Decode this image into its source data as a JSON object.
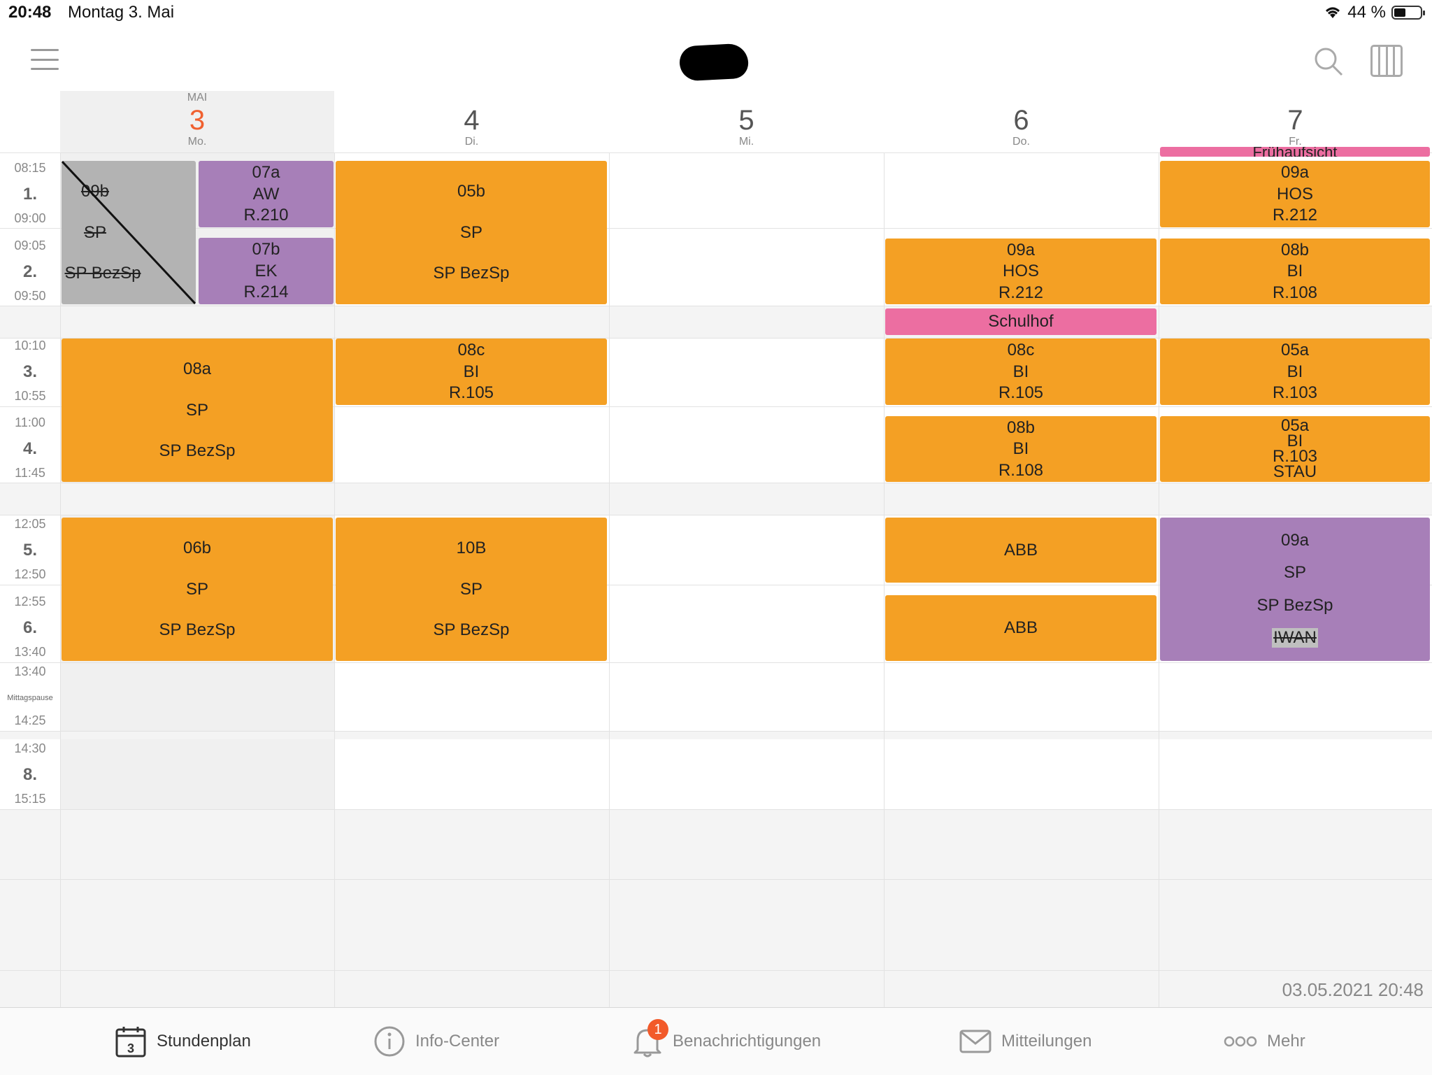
{
  "status": {
    "time": "20:48",
    "date": "Montag 3. Mai",
    "battery": "44 %"
  },
  "header": {
    "menu_icon": "hamburger-icon",
    "search_icon": "search-icon",
    "view_icon": "columns-icon"
  },
  "days": [
    {
      "month": "MAI",
      "num": "3",
      "weekday": "Mo.",
      "today": true
    },
    {
      "month": "",
      "num": "4",
      "weekday": "Di."
    },
    {
      "month": "",
      "num": "5",
      "weekday": "Mi."
    },
    {
      "month": "",
      "num": "6",
      "weekday": "Do."
    },
    {
      "month": "",
      "num": "7",
      "weekday": "Fr."
    }
  ],
  "periods": [
    {
      "start": "08:15",
      "num": "1.",
      "end": "09:00"
    },
    {
      "start": "09:05",
      "num": "2.",
      "end": "09:50"
    },
    {
      "start": "10:10",
      "num": "3.",
      "end": "10:55"
    },
    {
      "start": "11:00",
      "num": "4.",
      "end": "11:45"
    },
    {
      "start": "12:05",
      "num": "5.",
      "end": "12:50"
    },
    {
      "start": "12:55",
      "num": "6.",
      "end": "13:40"
    },
    {
      "start": "13:40",
      "num": "Mittagspause",
      "end": "14:25"
    },
    {
      "start": "14:30",
      "num": "8.",
      "end": "15:15"
    }
  ],
  "lessons": {
    "mo_1_2_cancel": [
      "09b",
      "SP",
      "SP BezSp"
    ],
    "mo_1": [
      "07a",
      "AW",
      "R.210"
    ],
    "mo_2": [
      "07b",
      "EK",
      "R.214"
    ],
    "mo_3_4": [
      "08a",
      "SP",
      "SP BezSp"
    ],
    "mo_5_6": [
      "06b",
      "SP",
      "SP BezSp"
    ],
    "di_1_2": [
      "05b",
      "SP",
      "SP BezSp"
    ],
    "di_3": [
      "08c",
      "BI",
      "R.105"
    ],
    "di_5_6": [
      "10B",
      "SP",
      "SP BezSp"
    ],
    "do_2": [
      "09a",
      "HOS",
      "R.212"
    ],
    "do_break": "Schulhof",
    "do_3": [
      "08c",
      "BI",
      "R.105"
    ],
    "do_4": [
      "08b",
      "BI",
      "R.108"
    ],
    "do_5": "ABB",
    "do_6": "ABB",
    "fr_top": "Frühaufsicht",
    "fr_1": [
      "09a",
      "HOS",
      "R.212"
    ],
    "fr_2": [
      "08b",
      "BI",
      "R.108"
    ],
    "fr_3": [
      "05a",
      "BI",
      "R.103"
    ],
    "fr_4": [
      "05a",
      "BI",
      "R.103",
      "STAU"
    ],
    "fr_5_6": [
      "09a",
      "SP",
      "SP BezSp",
      "IWAN"
    ]
  },
  "footer_timestamp": "03.05.2021 20:48",
  "tabs": [
    {
      "label": "Stundenplan",
      "icon": "calendar-icon",
      "icon_text": "3",
      "active": true
    },
    {
      "label": "Info-Center",
      "icon": "info-icon"
    },
    {
      "label": "Benachrichtigungen",
      "icon": "bell-icon",
      "badge": "1"
    },
    {
      "label": "Mitteilungen",
      "icon": "envelope-icon"
    },
    {
      "label": "Mehr",
      "icon": "more-icon"
    }
  ],
  "colors": {
    "lesson": "#f4a024",
    "lesson_alt": "#a77fb8",
    "cancelled": "#b3b3b3",
    "supervision": "#ec6ea1",
    "today": "#f0602f"
  }
}
